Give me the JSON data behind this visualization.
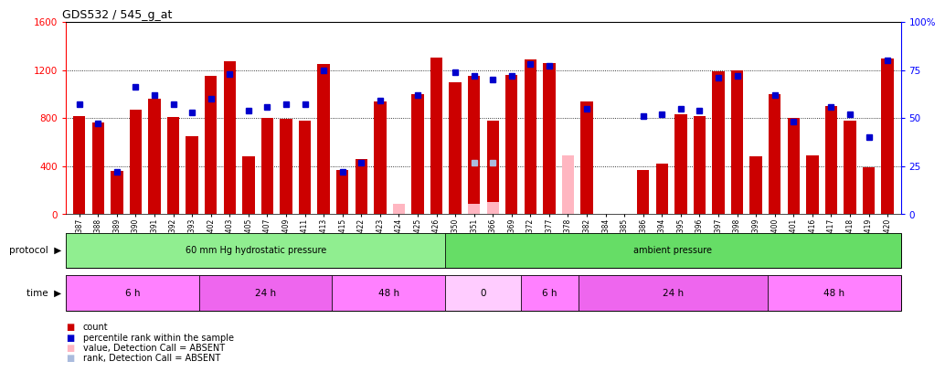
{
  "title": "GDS532 / 545_g_at",
  "samples": [
    "GSM11387",
    "GSM11388",
    "GSM11389",
    "GSM11390",
    "GSM11391",
    "GSM11392",
    "GSM11393",
    "GSM11402",
    "GSM11403",
    "GSM11405",
    "GSM11407",
    "GSM11409",
    "GSM11411",
    "GSM11413",
    "GSM11415",
    "GSM11422",
    "GSM11423",
    "GSM11424",
    "GSM11425",
    "GSM11426",
    "GSM11350",
    "GSM11351",
    "GSM11366",
    "GSM11369",
    "GSM11372",
    "GSM11377",
    "GSM11378",
    "GSM11382",
    "GSM11384",
    "GSM11385",
    "GSM11386",
    "GSM11394",
    "GSM11395",
    "GSM11396",
    "GSM11397",
    "GSM11398",
    "GSM11399",
    "GSM11400",
    "GSM11401",
    "GSM11416",
    "GSM11417",
    "GSM11418",
    "GSM11419",
    "GSM11420"
  ],
  "counts": [
    820,
    760,
    360,
    870,
    960,
    810,
    650,
    1150,
    1270,
    480,
    800,
    790,
    780,
    1250,
    370,
    460,
    940,
    0,
    1000,
    1300,
    1100,
    1150,
    780,
    1160,
    1290,
    1255,
    0,
    940,
    0,
    0,
    370,
    420,
    830,
    820,
    1190,
    1200,
    480,
    1000,
    800,
    490,
    900,
    780,
    390,
    1295
  ],
  "ranks": [
    57,
    47,
    22,
    66,
    62,
    57,
    53,
    60,
    73,
    54,
    56,
    57,
    57,
    75,
    22,
    27,
    59,
    null,
    62,
    null,
    74,
    72,
    70,
    72,
    78,
    77,
    null,
    55,
    null,
    null,
    51,
    52,
    55,
    54,
    71,
    72,
    null,
    62,
    48,
    null,
    56,
    52,
    40,
    80
  ],
  "absent_counts": [
    null,
    null,
    null,
    null,
    null,
    null,
    null,
    null,
    null,
    null,
    null,
    null,
    null,
    null,
    null,
    null,
    null,
    90,
    null,
    null,
    null,
    90,
    100,
    null,
    null,
    null,
    490,
    null,
    null,
    null,
    null,
    null,
    null,
    null,
    null,
    null,
    null,
    null,
    null,
    null,
    null,
    null,
    null,
    null
  ],
  "absent_ranks": [
    null,
    null,
    null,
    null,
    null,
    null,
    null,
    null,
    null,
    null,
    null,
    null,
    null,
    null,
    null,
    null,
    null,
    null,
    null,
    null,
    null,
    27,
    27,
    null,
    null,
    null,
    null,
    null,
    null,
    null,
    null,
    null,
    null,
    null,
    null,
    null,
    null,
    null,
    null,
    null,
    null,
    null,
    null,
    null
  ],
  "protocol_groups": [
    {
      "label": "60 mm Hg hydrostatic pressure",
      "start": 0,
      "end": 20,
      "color": "#90EE90"
    },
    {
      "label": "ambient pressure",
      "start": 20,
      "end": 44,
      "color": "#66DD66"
    }
  ],
  "time_groups": [
    {
      "label": "6 h",
      "start": 0,
      "end": 7,
      "color": "#FF80FF"
    },
    {
      "label": "24 h",
      "start": 7,
      "end": 14,
      "color": "#EE66EE"
    },
    {
      "label": "48 h",
      "start": 14,
      "end": 20,
      "color": "#FF80FF"
    },
    {
      "label": "0",
      "start": 20,
      "end": 24,
      "color": "#FFCCFF"
    },
    {
      "label": "6 h",
      "start": 24,
      "end": 27,
      "color": "#FF80FF"
    },
    {
      "label": "24 h",
      "start": 27,
      "end": 37,
      "color": "#EE66EE"
    },
    {
      "label": "48 h",
      "start": 37,
      "end": 44,
      "color": "#FF80FF"
    }
  ],
  "ylim_left": [
    0,
    1600
  ],
  "ylim_right": [
    0,
    100
  ],
  "bar_color": "#CC0000",
  "absent_bar_color": "#FFB6C1",
  "rank_color": "#0000CC",
  "absent_rank_color": "#AABBDD",
  "yticks_left": [
    0,
    400,
    800,
    1200,
    1600
  ],
  "yticks_right": [
    0,
    25,
    50,
    75,
    100
  ]
}
